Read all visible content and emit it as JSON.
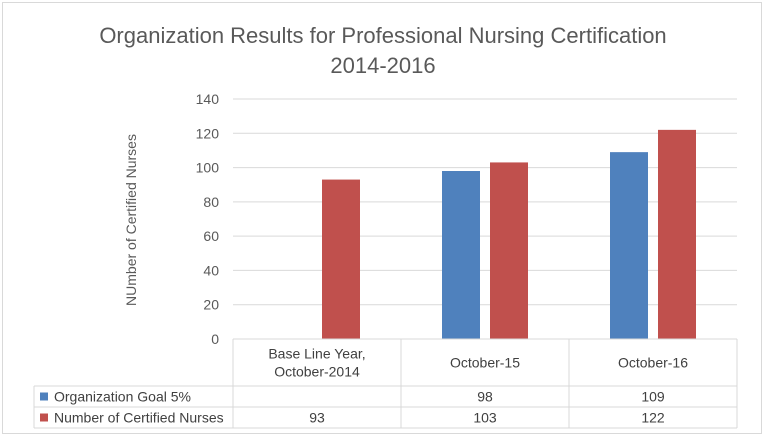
{
  "chart_data": {
    "type": "bar",
    "title": "Organization Results for Professional Nursing Certification",
    "subtitle": "2014-2016",
    "xlabel": "",
    "ylabel": "NUmber of Certified Nurses",
    "ylim": [
      0,
      140
    ],
    "yticks": [
      0,
      20,
      40,
      60,
      80,
      100,
      120,
      140
    ],
    "grid": true,
    "legend": "data-table",
    "categories": [
      [
        "Base Line Year,",
        "October-2014"
      ],
      [
        "October-15"
      ],
      [
        "October-16"
      ]
    ],
    "series": [
      {
        "name": "Organization Goal 5%",
        "color": "#4f81bd",
        "values": [
          null,
          98,
          109
        ]
      },
      {
        "name": "Number of Certified Nurses",
        "color": "#c0504d",
        "values": [
          93,
          103,
          122
        ]
      }
    ]
  }
}
